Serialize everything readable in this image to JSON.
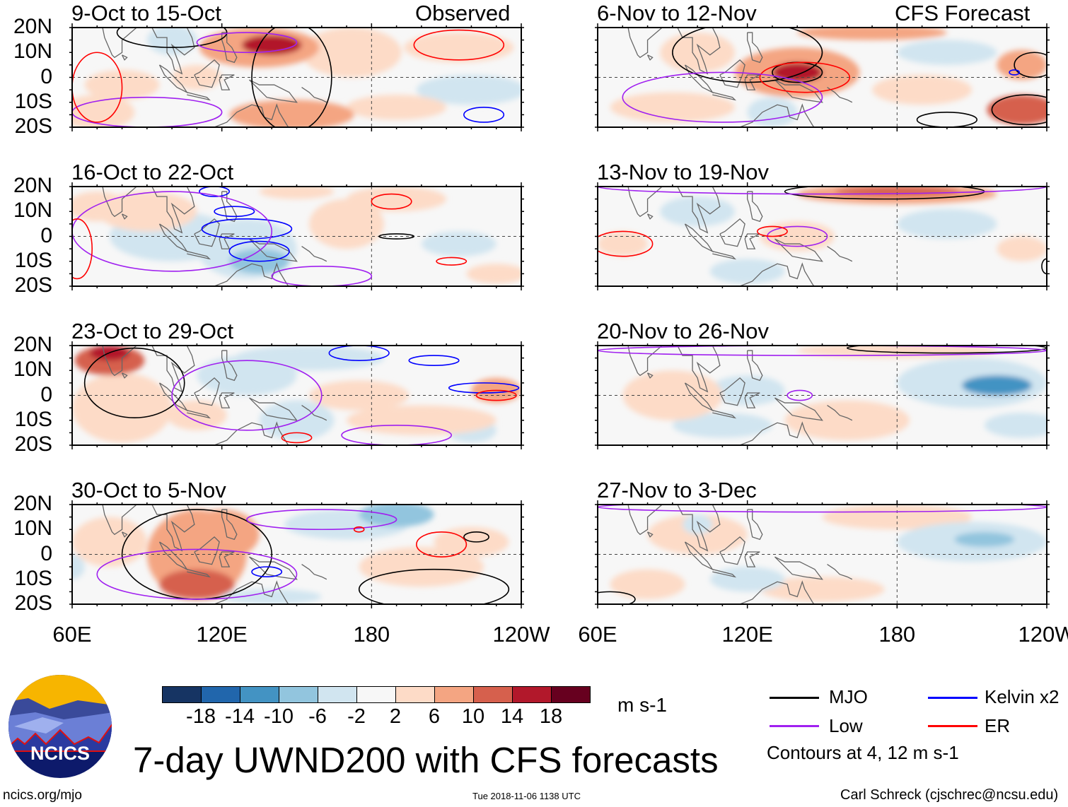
{
  "header": {
    "observed_label": "Observed",
    "forecast_label": "CFS Forecast"
  },
  "lat_labels": [
    "20N",
    "10N",
    "0",
    "10S",
    "20S"
  ],
  "lon_labels": [
    "60E",
    "120E",
    "180",
    "120W"
  ],
  "colors": {
    "levels": [
      "#163463",
      "#2166ac",
      "#4393c3",
      "#92c5de",
      "#d1e5f0",
      "#f7f7f7",
      "#fddbc7",
      "#f4a582",
      "#d6604d",
      "#b2182b",
      "#67001f"
    ],
    "MJO": "#000000",
    "Low": "#a020f0",
    "Kelvin": "#0000ff",
    "ER": "#ff0000",
    "coast": "#666666"
  },
  "colorbar": {
    "ticks": [
      "-18",
      "-14",
      "-10",
      "-6",
      "-2",
      "2",
      "6",
      "10",
      "14",
      "18"
    ],
    "units": "m s-1"
  },
  "legend": {
    "items": [
      {
        "label": "MJO",
        "key": "MJO"
      },
      {
        "label": "Low",
        "key": "Low"
      },
      {
        "label": "Kelvin x2",
        "key": "Kelvin"
      },
      {
        "label": "ER",
        "key": "ER"
      }
    ],
    "contours_note": "Contours at 4, 12 m s-1"
  },
  "footer": {
    "title": "7-day UWND200 with CFS forecasts",
    "url": "ncics.org/mjo",
    "timestamp": "Tue 2018-11-06 1138 UTC",
    "author": "Carl Schreck (cjschrec@ncsu.edu)",
    "logo_text": "NCICS"
  },
  "chart_data": {
    "type": "map-contour",
    "lon_range": [
      60,
      240
    ],
    "lat_range": [
      -20,
      20
    ],
    "units": "m s-1",
    "panels": [
      {
        "title": "9-Oct to 15-Oct",
        "column": "observed",
        "fill": [
          [
            135,
            12,
            24,
            8,
            7
          ],
          [
            140,
            13,
            12,
            4,
            15
          ],
          [
            70,
            -14,
            15,
            7,
            6
          ],
          [
            80,
            -3,
            15,
            6,
            3
          ],
          [
            148,
            -15,
            25,
            6,
            9
          ],
          [
            215,
            12,
            22,
            6,
            4
          ],
          [
            220,
            -5,
            22,
            6,
            -3
          ],
          [
            100,
            15,
            10,
            6,
            -3
          ],
          [
            172,
            10,
            20,
            10,
            3
          ],
          [
            110,
            0,
            10,
            5,
            3
          ],
          [
            190,
            -12,
            20,
            5,
            3
          ]
        ],
        "contours": [
          [
            "MJO",
            148,
            0,
            16,
            22
          ],
          [
            "MJO",
            100,
            18,
            22,
            6
          ],
          [
            "Low",
            90,
            -14,
            30,
            6
          ],
          [
            "Low",
            130,
            14,
            20,
            4
          ],
          [
            "ER",
            70,
            -4,
            10,
            14
          ],
          [
            "ER",
            215,
            13,
            18,
            6
          ],
          [
            "Kelvin",
            225,
            -15,
            8,
            3
          ]
        ]
      },
      {
        "title": "16-Oct to 22-Oct",
        "column": "observed",
        "fill": [
          [
            100,
            0,
            25,
            10,
            -3
          ],
          [
            130,
            -5,
            20,
            12,
            -4
          ],
          [
            135,
            -10,
            12,
            5,
            -7
          ],
          [
            90,
            10,
            20,
            8,
            3
          ],
          [
            170,
            5,
            15,
            10,
            3
          ],
          [
            190,
            15,
            20,
            5,
            3
          ],
          [
            215,
            -3,
            15,
            5,
            -3
          ],
          [
            70,
            12,
            12,
            6,
            4
          ],
          [
            150,
            18,
            15,
            3,
            3
          ],
          [
            230,
            -15,
            12,
            4,
            3
          ]
        ],
        "contours": [
          [
            "Kelvin",
            130,
            3,
            18,
            4
          ],
          [
            "Kelvin",
            135,
            -6,
            12,
            4
          ],
          [
            "Kelvin",
            117,
            18,
            6,
            2
          ],
          [
            "Kelvin",
            125,
            10,
            8,
            2
          ],
          [
            "Low",
            100,
            2,
            40,
            16
          ],
          [
            "Low",
            160,
            -16,
            20,
            4
          ],
          [
            "ER",
            188,
            14,
            8,
            3
          ],
          [
            "ER",
            212,
            -10,
            6,
            1.5
          ],
          [
            "ER",
            62,
            -5,
            6,
            12
          ],
          [
            "MJO",
            190,
            0,
            7,
            1
          ]
        ]
      },
      {
        "title": "23-Oct to 29-Oct",
        "column": "observed",
        "fill": [
          [
            75,
            14,
            14,
            6,
            14
          ],
          [
            75,
            17,
            8,
            3,
            18
          ],
          [
            80,
            -5,
            20,
            14,
            6
          ],
          [
            130,
            8,
            20,
            8,
            -3
          ],
          [
            150,
            -10,
            15,
            8,
            -5
          ],
          [
            155,
            15,
            30,
            5,
            -4
          ],
          [
            200,
            -10,
            30,
            6,
            5
          ],
          [
            230,
            2,
            10,
            5,
            9
          ],
          [
            110,
            -8,
            12,
            6,
            4
          ],
          [
            220,
            -14,
            10,
            5,
            -4
          ],
          [
            175,
            0,
            20,
            6,
            3
          ]
        ],
        "contours": [
          [
            "MJO",
            85,
            5,
            20,
            14
          ],
          [
            "Low",
            130,
            0,
            30,
            14
          ],
          [
            "Low",
            190,
            -16,
            22,
            4
          ],
          [
            "Kelvin",
            175,
            17,
            12,
            3
          ],
          [
            "Kelvin",
            205,
            14,
            10,
            2
          ],
          [
            "Kelvin",
            225,
            3,
            14,
            2
          ],
          [
            "ER",
            230,
            0,
            8,
            2
          ],
          [
            "ER",
            150,
            -17,
            6,
            2
          ]
        ]
      },
      {
        "title": "30-Oct to 5-Nov",
        "column": "observed",
        "fill": [
          [
            110,
            0,
            20,
            18,
            8
          ],
          [
            110,
            -12,
            15,
            6,
            12
          ],
          [
            120,
            8,
            15,
            10,
            10
          ],
          [
            170,
            12,
            25,
            6,
            -4
          ],
          [
            190,
            16,
            15,
            5,
            -8
          ],
          [
            200,
            -5,
            25,
            8,
            5
          ],
          [
            75,
            5,
            15,
            10,
            3
          ],
          [
            220,
            5,
            15,
            6,
            4
          ],
          [
            140,
            -17,
            20,
            3,
            -3
          ],
          [
            60,
            -5,
            5,
            5,
            -3
          ]
        ],
        "contours": [
          [
            "MJO",
            110,
            0,
            30,
            18
          ],
          [
            "MJO",
            205,
            -14,
            30,
            8
          ],
          [
            "MJO",
            222,
            7,
            5,
            2
          ],
          [
            "Low",
            110,
            -8,
            40,
            10
          ],
          [
            "Low",
            160,
            14,
            30,
            4
          ],
          [
            "Kelvin",
            138,
            -7,
            6,
            2
          ],
          [
            "ER",
            208,
            4,
            10,
            5
          ],
          [
            "ER",
            175,
            10,
            2,
            1
          ]
        ]
      },
      {
        "title": "6-Nov to 12-Nov",
        "column": "forecast",
        "fill": [
          [
            140,
            2,
            25,
            10,
            8
          ],
          [
            140,
            2,
            10,
            4,
            16
          ],
          [
            230,
            -13,
            14,
            6,
            14
          ],
          [
            230,
            5,
            10,
            6,
            8
          ],
          [
            170,
            18,
            30,
            3,
            8
          ],
          [
            90,
            -12,
            25,
            6,
            3
          ],
          [
            200,
            10,
            20,
            5,
            -3
          ],
          [
            130,
            -14,
            10,
            6,
            -3
          ],
          [
            190,
            -5,
            20,
            6,
            5
          ],
          [
            100,
            10,
            15,
            8,
            3
          ]
        ],
        "contours": [
          [
            "MJO",
            140,
            2,
            10,
            4
          ],
          [
            "MJO",
            232,
            -13,
            14,
            6
          ],
          [
            "MJO",
            235,
            5,
            8,
            5
          ],
          [
            "MJO",
            200,
            -17,
            12,
            3
          ],
          [
            "MJO",
            120,
            10,
            30,
            12
          ],
          [
            "ER",
            143,
            0,
            18,
            6
          ],
          [
            "Low",
            110,
            -8,
            40,
            10
          ],
          [
            "Kelvin",
            227,
            2,
            2,
            1
          ]
        ]
      },
      {
        "title": "13-Nov to 19-Nov",
        "column": "forecast",
        "fill": [
          [
            180,
            17,
            40,
            4,
            10
          ],
          [
            180,
            18,
            25,
            2,
            14
          ],
          [
            70,
            -3,
            10,
            5,
            6
          ],
          [
            140,
            0,
            15,
            6,
            4
          ],
          [
            100,
            10,
            15,
            6,
            -3
          ],
          [
            200,
            5,
            20,
            6,
            -3
          ],
          [
            230,
            -5,
            10,
            5,
            4
          ],
          [
            120,
            -14,
            15,
            5,
            -3
          ]
        ],
        "contours": [
          [
            "MJO",
            175,
            18,
            40,
            3
          ],
          [
            "Low",
            150,
            20,
            90,
            3
          ],
          [
            "Low",
            140,
            0,
            12,
            4
          ],
          [
            "ER",
            70,
            -3,
            12,
            5
          ],
          [
            "ER",
            130,
            2,
            6,
            2
          ],
          [
            "MJO",
            240,
            -12,
            2,
            3
          ]
        ]
      },
      {
        "title": "20-Nov to 26-Nov",
        "column": "forecast",
        "fill": [
          [
            210,
            5,
            30,
            10,
            -5
          ],
          [
            220,
            4,
            14,
            4,
            -10
          ],
          [
            180,
            18,
            40,
            3,
            5
          ],
          [
            120,
            2,
            15,
            6,
            -3
          ],
          [
            110,
            -12,
            20,
            5,
            -3
          ],
          [
            160,
            -10,
            25,
            8,
            3
          ],
          [
            90,
            0,
            20,
            10,
            3
          ],
          [
            230,
            -12,
            15,
            5,
            -3
          ]
        ],
        "contours": [
          [
            "MJO",
            200,
            19,
            40,
            2
          ],
          [
            "Low",
            150,
            18,
            90,
            2
          ],
          [
            "Low",
            141,
            0,
            5,
            2
          ]
        ]
      },
      {
        "title": "27-Nov to 3-Dec",
        "column": "forecast",
        "fill": [
          [
            210,
            5,
            30,
            8,
            -4
          ],
          [
            215,
            6,
            12,
            3,
            -7
          ],
          [
            180,
            15,
            30,
            5,
            3
          ],
          [
            100,
            8,
            20,
            8,
            3
          ],
          [
            150,
            -14,
            25,
            5,
            3
          ],
          [
            80,
            -12,
            15,
            6,
            3
          ],
          [
            120,
            -10,
            15,
            5,
            -3
          ],
          [
            100,
            12,
            6,
            4,
            -3
          ]
        ],
        "contours": [
          [
            "Low",
            150,
            19,
            90,
            2
          ],
          [
            "MJO",
            65,
            -18,
            10,
            3
          ]
        ]
      }
    ]
  }
}
